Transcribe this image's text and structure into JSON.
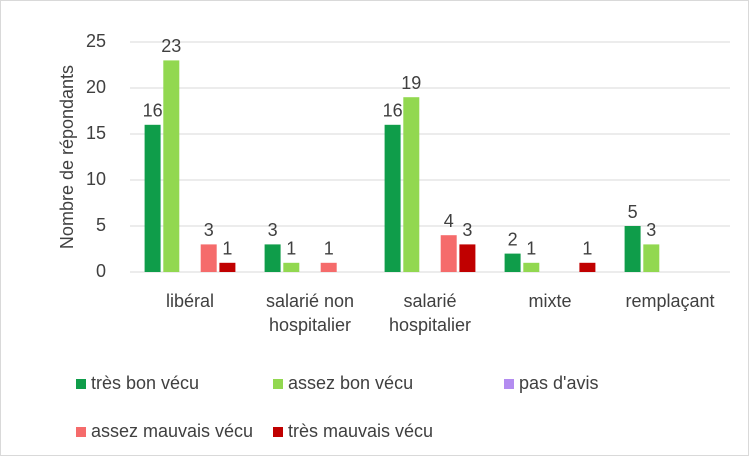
{
  "chart_data": {
    "type": "bar",
    "y_label": "Nombre de répondants",
    "categories": [
      "libéral",
      "salarié non hospitalier",
      "salarié hospitalier",
      "mixte",
      "remplaçant"
    ],
    "series": [
      {
        "name": "très bon vécu",
        "color": "#0f9d4a",
        "values": [
          16,
          3,
          16,
          2,
          5
        ]
      },
      {
        "name": "assez bon vécu",
        "color": "#92d850",
        "values": [
          23,
          1,
          19,
          1,
          3
        ]
      },
      {
        "name": "pas d'avis",
        "color": "#b38cf0",
        "values": [
          0,
          0,
          0,
          0,
          0
        ]
      },
      {
        "name": "assez mauvais vécu",
        "color": "#f56b6b",
        "values": [
          3,
          1,
          4,
          0,
          0
        ]
      },
      {
        "name": "très mauvais vécu",
        "color": "#c00000",
        "values": [
          1,
          0,
          3,
          1,
          0
        ]
      }
    ],
    "ylim": [
      0,
      25
    ],
    "yticks": [
      0,
      5,
      10,
      15,
      20,
      25
    ],
    "grid": true,
    "legend": "bottom"
  }
}
